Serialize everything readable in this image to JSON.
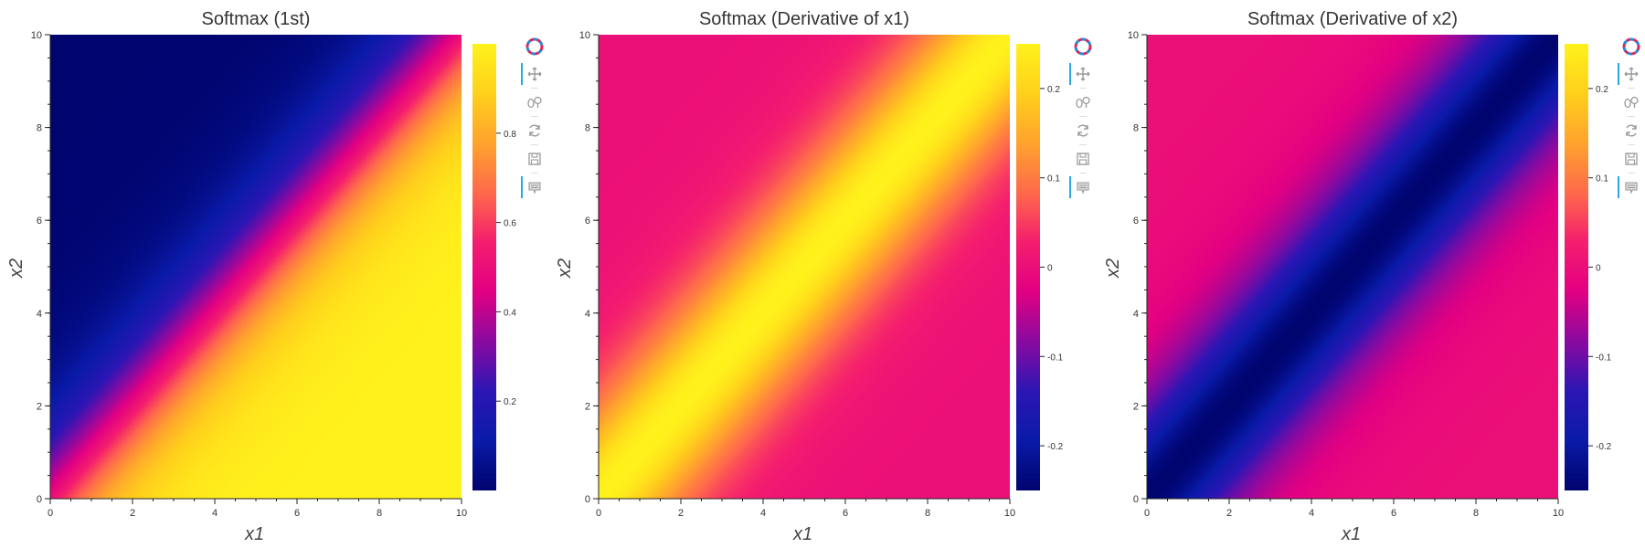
{
  "panels": [
    {
      "title": "Softmax (1st)",
      "xlabel": "x1",
      "ylabel": "x2",
      "colorbar_ticks": [
        "0.2",
        "0.4",
        "0.6",
        "0.8"
      ]
    },
    {
      "title": "Softmax (Derivative of x1)",
      "xlabel": "x1",
      "ylabel": "x2",
      "colorbar_ticks": [
        "-0.2",
        "-0.1",
        "0",
        "0.1",
        "0.2"
      ]
    },
    {
      "title": "Softmax (Derivative of x2)",
      "xlabel": "x1",
      "ylabel": "x2",
      "colorbar_ticks": [
        "-0.2",
        "-0.1",
        "0",
        "0.1",
        "0.2"
      ]
    }
  ],
  "toolbar": {
    "tools": [
      "logo-icon",
      "pan-icon",
      "wheel-zoom-icon",
      "reset-icon",
      "save-icon",
      "hover-icon"
    ]
  },
  "colormap": [
    "#00046f",
    "#0a1aa8",
    "#2c16b4",
    "#8a0aa0",
    "#e20082",
    "#f41e6e",
    "#ff6a4c",
    "#ffa32e",
    "#ffd01c",
    "#fff21c"
  ],
  "chart_data": [
    {
      "type": "heatmap",
      "title": "Softmax (1st)",
      "xlabel": "x1",
      "ylabel": "x2",
      "function": "softmax_1 = 1/(1+exp(x2-x1))",
      "xlim": [
        0,
        10
      ],
      "ylim": [
        0,
        10
      ],
      "x_ticks": [
        0,
        2,
        4,
        6,
        8,
        10
      ],
      "y_ticks": [
        0,
        2,
        4,
        6,
        8,
        10
      ],
      "clim": [
        0,
        1
      ],
      "colorbar_ticks": [
        0.2,
        0.4,
        0.6,
        0.8
      ],
      "grid": false
    },
    {
      "type": "heatmap",
      "title": "Softmax (Derivative of x1)",
      "xlabel": "x1",
      "ylabel": "x2",
      "function": "s*(1-s), s = 1/(1+exp(x2-x1))",
      "xlim": [
        0,
        10
      ],
      "ylim": [
        0,
        10
      ],
      "x_ticks": [
        0,
        2,
        4,
        6,
        8,
        10
      ],
      "y_ticks": [
        0,
        2,
        4,
        6,
        8,
        10
      ],
      "clim": [
        -0.25,
        0.25
      ],
      "colorbar_ticks": [
        -0.2,
        -0.1,
        0,
        0.1,
        0.2
      ],
      "grid": false
    },
    {
      "type": "heatmap",
      "title": "Softmax (Derivative of x2)",
      "xlabel": "x1",
      "ylabel": "x2",
      "function": "-s*(1-s), s = 1/(1+exp(x2-x1))",
      "xlim": [
        0,
        10
      ],
      "ylim": [
        0,
        10
      ],
      "x_ticks": [
        0,
        2,
        4,
        6,
        8,
        10
      ],
      "y_ticks": [
        0,
        2,
        4,
        6,
        8,
        10
      ],
      "clim": [
        -0.25,
        0.25
      ],
      "colorbar_ticks": [
        -0.2,
        -0.1,
        0,
        0.1,
        0.2
      ],
      "grid": false
    }
  ]
}
